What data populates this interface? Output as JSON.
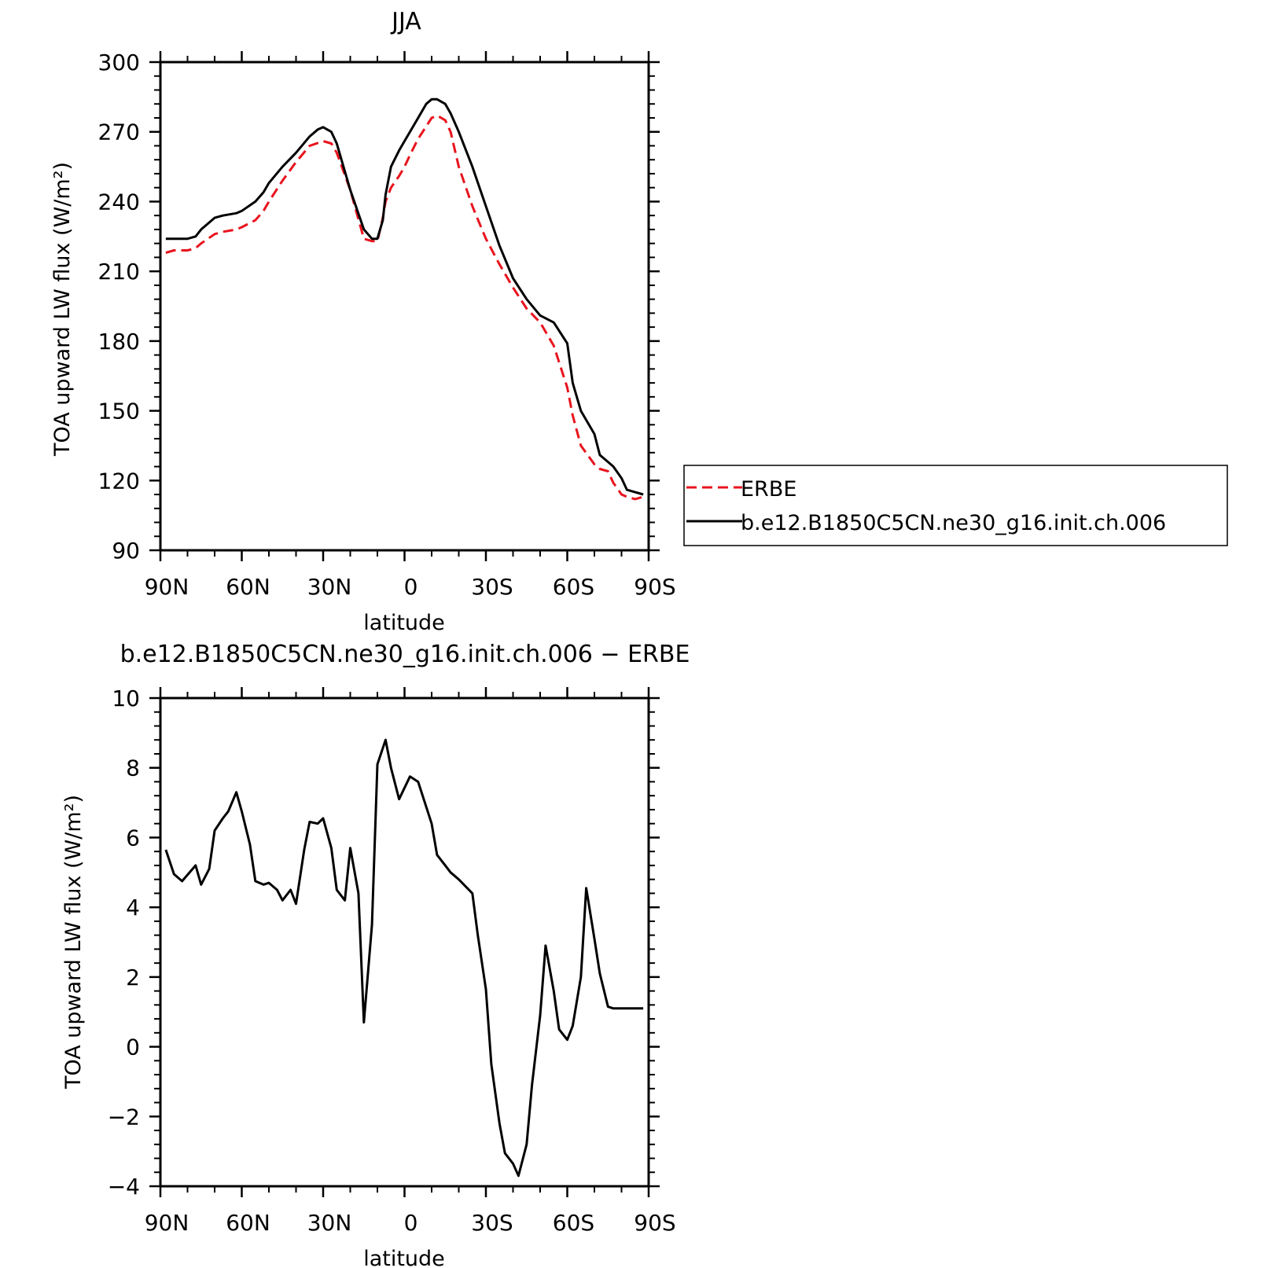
{
  "chart_data": [
    {
      "type": "line",
      "title": "JJA",
      "xlabel": "latitude",
      "ylabel": "TOA upward LW flux (W/m²)",
      "xlim": [
        90,
        -90
      ],
      "ylim": [
        90,
        300
      ],
      "xticks": [
        90,
        60,
        30,
        0,
        -30,
        -60,
        -90
      ],
      "xtick_labels": [
        "90N",
        "60N",
        "30N",
        "0",
        "30S",
        "60S",
        "90S"
      ],
      "yticks": [
        90,
        120,
        150,
        180,
        210,
        240,
        270,
        300
      ],
      "ytick_labels": [
        "90",
        "120",
        "150",
        "180",
        "210",
        "240",
        "270",
        "300"
      ],
      "legend": {
        "placement": "right",
        "entries": [
          "ERBE",
          "b.e12.B1850C5CN.ne30_g16.init.ch.006"
        ]
      },
      "series": [
        {
          "name": "ERBE",
          "color": "#e8141e",
          "dash": "dashed",
          "x": [
            88,
            85,
            80,
            77,
            75,
            70,
            67,
            62,
            60,
            55,
            52,
            50,
            45,
            40,
            35,
            30,
            27,
            25,
            20,
            15,
            12,
            10,
            8,
            7,
            5,
            2,
            0,
            -2,
            -5,
            -10,
            -12,
            -15,
            -17,
            -20,
            -25,
            -30,
            -35,
            -40,
            -45,
            -50,
            -55,
            -60,
            -62,
            -65,
            -70,
            -72,
            -75,
            -77,
            -80,
            -82,
            -85,
            -88
          ],
          "y": [
            218,
            219,
            219,
            220,
            222,
            226,
            227,
            228,
            229,
            232,
            236,
            240,
            249,
            257,
            264,
            266,
            265,
            261,
            245,
            224,
            223,
            223,
            233,
            240,
            246,
            251,
            255,
            260,
            267,
            276,
            277,
            275,
            270,
            255,
            238,
            224,
            213,
            203,
            194,
            188,
            178,
            160,
            148,
            135,
            127,
            125,
            124,
            119,
            114,
            113,
            112,
            113
          ]
        },
        {
          "name": "b.e12.B1850C5CN.ne30_g16.init.ch.006",
          "color": "#000000",
          "dash": "solid",
          "x": [
            88,
            85,
            80,
            77,
            75,
            70,
            67,
            62,
            60,
            55,
            52,
            50,
            45,
            40,
            35,
            32,
            30,
            27,
            25,
            22,
            20,
            15,
            12,
            10,
            8,
            7,
            5,
            2,
            0,
            -2,
            -5,
            -8,
            -10,
            -12,
            -15,
            -17,
            -20,
            -25,
            -30,
            -35,
            -40,
            -45,
            -50,
            -55,
            -60,
            -62,
            -65,
            -70,
            -72,
            -75,
            -77,
            -80,
            -82,
            -85,
            -88
          ],
          "y": [
            224,
            224,
            224,
            225,
            228,
            233,
            234,
            235,
            236,
            240,
            244,
            248,
            255,
            261,
            268,
            271,
            272,
            270,
            265,
            253,
            245,
            228,
            224,
            224,
            232,
            243,
            255,
            262,
            266,
            270,
            276,
            282,
            284,
            284,
            282,
            278,
            270,
            255,
            238,
            221,
            207,
            198,
            191,
            188,
            179,
            162,
            150,
            140,
            131,
            128,
            126,
            121,
            116,
            115,
            114
          ]
        }
      ]
    },
    {
      "type": "line",
      "title": "b.e12.B1850C5CN.ne30_g16.init.ch.006 − ERBE",
      "xlabel": "latitude",
      "ylabel": "TOA upward LW flux (W/m²)",
      "xlim": [
        90,
        -90
      ],
      "ylim": [
        -4,
        10
      ],
      "xticks": [
        90,
        60,
        30,
        0,
        -30,
        -60,
        -90
      ],
      "xtick_labels": [
        "90N",
        "60N",
        "30N",
        "0",
        "30S",
        "60S",
        "90S"
      ],
      "yticks": [
        -4,
        -2,
        0,
        2,
        4,
        6,
        8,
        10
      ],
      "ytick_labels": [
        "−4",
        "−2",
        "0",
        "2",
        "4",
        "6",
        "8",
        "10"
      ],
      "series": [
        {
          "color": "#000000",
          "dash": "solid",
          "x": [
            88,
            85,
            82,
            77,
            75,
            72,
            70,
            67,
            65,
            62,
            60,
            57,
            55,
            52,
            50,
            47,
            45,
            42,
            40,
            37,
            35,
            32,
            30,
            27,
            25,
            22,
            20,
            17,
            15,
            12,
            10,
            7,
            5,
            2,
            -2,
            -5,
            -10,
            -12,
            -15,
            -17,
            -20,
            -25,
            -27,
            -30,
            -32,
            -35,
            -37,
            -40,
            -42,
            -45,
            -47,
            -50,
            -52,
            -55,
            -57,
            -60,
            -62,
            -65,
            -67,
            -70,
            -72,
            -75,
            -77,
            -80,
            -82,
            -85,
            -88
          ],
          "y": [
            5.65,
            4.95,
            4.75,
            5.2,
            4.65,
            5.1,
            6.2,
            6.55,
            6.75,
            7.3,
            6.75,
            5.8,
            4.75,
            4.65,
            4.7,
            4.5,
            4.2,
            4.5,
            4.1,
            5.65,
            6.45,
            6.4,
            6.55,
            5.7,
            4.5,
            4.2,
            5.7,
            4.4,
            0.7,
            3.5,
            8.1,
            8.8,
            8.0,
            7.1,
            7.75,
            7.6,
            6.4,
            5.5,
            5.2,
            5.0,
            4.8,
            4.4,
            3.2,
            1.65,
            -0.5,
            -2.2,
            -3.05,
            -3.35,
            -3.7,
            -2.8,
            -1.1,
            0.9,
            2.9,
            1.6,
            0.5,
            0.2,
            0.6,
            2.0,
            4.55,
            3.1,
            2.1,
            1.15,
            1.1,
            1.1,
            1.1,
            1.1,
            1.1
          ]
        }
      ]
    }
  ]
}
